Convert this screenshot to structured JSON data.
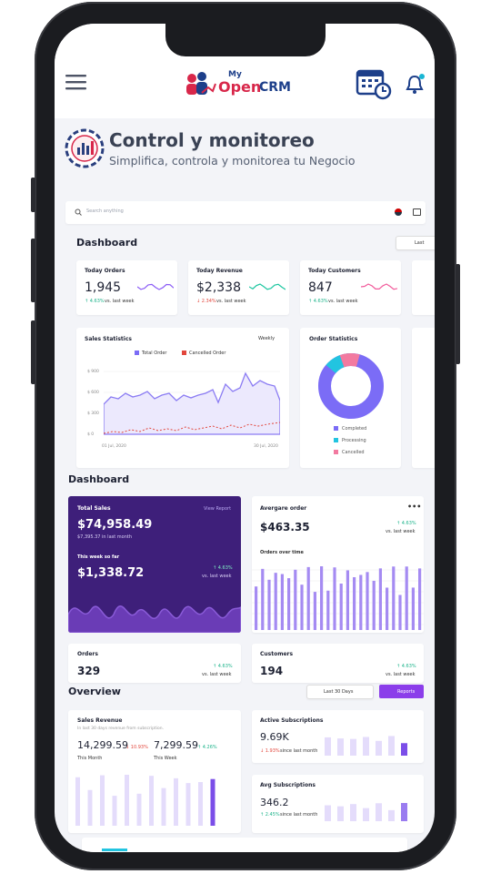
{
  "header": {
    "logo": {
      "small": "My",
      "open": "Open",
      "crm": "CRM"
    }
  },
  "hero": {
    "title": "Control y monitoreo",
    "subtitle": "Simplifica, controla y monitorea tu Negocio"
  },
  "search": {
    "placeholder": "Search anything"
  },
  "dashboard1": {
    "title": "Dashboard",
    "button": "Last",
    "cards": [
      {
        "label": "Today Orders",
        "value": "1,945",
        "change": "↑ 4.63%",
        "note": "vs. last week"
      },
      {
        "label": "Today Revenue",
        "value": "$2,338",
        "change": "↓ 2.34%",
        "note": "vs. last week"
      },
      {
        "label": "Today Customers",
        "value": "847",
        "change": "↑ 4.63%",
        "note": "vs. last week"
      }
    ],
    "sales_statistics": {
      "title": "Sales Statistics",
      "period": "Weekly",
      "legend": [
        "Total Order",
        "Cancelled Order"
      ],
      "yticks": [
        "$ 900",
        "$ 600",
        "$ 300",
        "$ 0"
      ],
      "x_labels": [
        "01 Jul, 2020",
        "30 Jul, 2020"
      ]
    },
    "order_statistics": {
      "title": "Order Statistics",
      "legend": [
        "Completed",
        "Processing",
        "Cancelled"
      ]
    }
  },
  "dashboard2": {
    "title": "Dashboard",
    "total_sales": {
      "label": "Total Sales",
      "link": "View Report",
      "value": "$74,958.49",
      "last_month": "$7,395.37 in last month",
      "week_label": "This week so far",
      "week_value": "$1,338.72",
      "change": "↑ 4.63%",
      "note": "vs. last week"
    },
    "average_order": {
      "label": "Avergare order",
      "value": "$463.35",
      "change": "↑ 4.63%",
      "note": "vs. last week",
      "chart_label": "Orders over time"
    },
    "orders": {
      "label": "Orders",
      "value": "329",
      "change": "↑ 4.63%",
      "note": "vs. last week"
    },
    "customers": {
      "label": "Customers",
      "value": "194",
      "change": "↑ 4.63%",
      "note": "vs. last week"
    }
  },
  "overview": {
    "title": "Overview",
    "range": "Last 30 Days",
    "reports": "Reports",
    "sales_revenue": {
      "label": "Sales Revenue",
      "description": "In last 30 days revenue from subscription.",
      "month_value": "14,299.59",
      "month_change": "↓ 10.93%",
      "month_label": "This Month",
      "week_value": "7,299.59",
      "week_change": "↑ 4.26%",
      "week_label": "This Week"
    },
    "active_subscriptions": {
      "label": "Active Subscriptions",
      "value": "9.69K",
      "change": "↓ 1.93%",
      "note": "since last month"
    },
    "avg_subscriptions": {
      "label": "Avg Subscriptions",
      "value": "346.2",
      "change": "↑ 2.45%",
      "note": "since last month"
    }
  }
}
